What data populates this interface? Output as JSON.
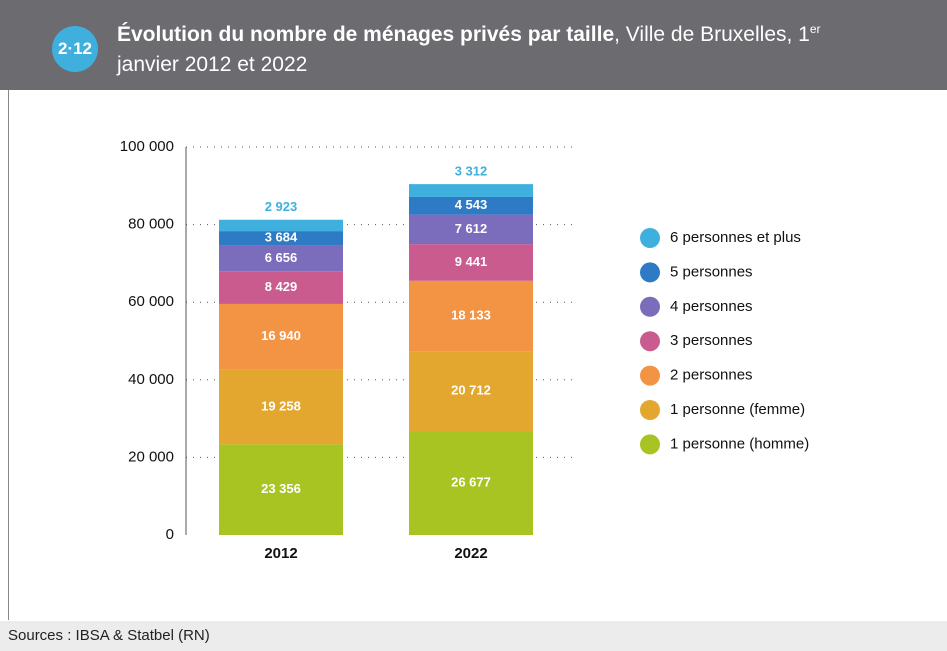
{
  "badge": "2·12",
  "header": {
    "title_bold": "Évolution du nombre de ménages privés par taille",
    "title_rest": ", Ville de Bruxelles, 1",
    "title_sup": "er",
    "title_end": "janvier 2012 et 2022"
  },
  "source": "Sources : IBSA & Statbel (RN)",
  "chart_data": {
    "type": "stacked_bar",
    "categories": [
      "2012",
      "2022"
    ],
    "series": [
      {
        "name": "1 personne (homme)",
        "color": "#a8c423",
        "values": [
          23356,
          26677
        ],
        "value_labels": [
          "23 356",
          "26 677"
        ]
      },
      {
        "name": "1 personne (femme)",
        "color": "#e3a72f",
        "values": [
          19258,
          20712
        ],
        "value_labels": [
          "19 258",
          "20 712"
        ]
      },
      {
        "name": "2 personnes",
        "color": "#f39344",
        "values": [
          16940,
          18133
        ],
        "value_labels": [
          "16 940",
          "18 133"
        ]
      },
      {
        "name": "3 personnes",
        "color": "#c95b8e",
        "values": [
          8429,
          9441
        ],
        "value_labels": [
          "8 429",
          "9 441"
        ]
      },
      {
        "name": "4 personnes",
        "color": "#7b6cbc",
        "values": [
          6656,
          7612
        ],
        "value_labels": [
          "6 656",
          "7 612"
        ]
      },
      {
        "name": "5 personnes",
        "color": "#2e7ac5",
        "values": [
          3684,
          4543
        ],
        "value_labels": [
          "3 684",
          "4 543"
        ]
      },
      {
        "name": "6 personnes et plus",
        "color": "#3fb0dd",
        "values": [
          2923,
          3312
        ],
        "value_labels": [
          "2 923",
          "3 312"
        ]
      }
    ],
    "ylim": [
      0,
      100000
    ],
    "yticks": [
      0,
      {
        "value": 20000,
        "label": "20 000"
      },
      {
        "value": 40000,
        "label": "40 000"
      },
      {
        "value": 60000,
        "label": "60 000"
      },
      {
        "value": 80000,
        "label": "80 000"
      },
      {
        "value": 100000,
        "label": "100 000"
      }
    ],
    "grid": true,
    "legend": "right"
  }
}
